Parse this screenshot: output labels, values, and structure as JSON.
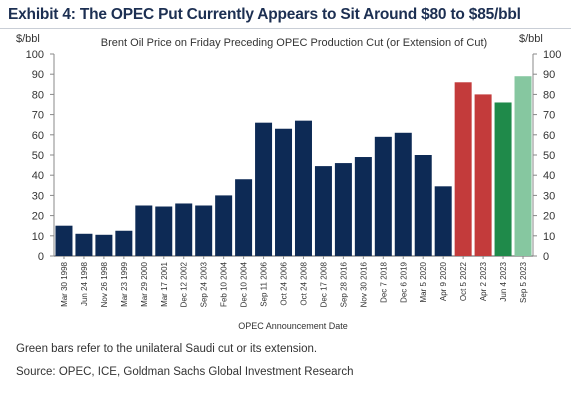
{
  "exhibit_title": "Exhibit 4: The OPEC Put Currently Appears to Sit Around $80 to $85/bbl",
  "chart_data": {
    "type": "bar",
    "title": "Brent Oil Price on Friday Preceding OPEC Production Cut (or Extension of Cut)",
    "xlabel": "OPEC Announcement Date",
    "ylabel_left": "$/bbl",
    "ylabel_right": "$/bbl",
    "ylim": [
      0,
      100
    ],
    "yticks": [
      0,
      10,
      20,
      30,
      40,
      50,
      60,
      70,
      80,
      90,
      100
    ],
    "grid": false,
    "legend": "none",
    "categories": [
      "Mar 30 1998",
      "Jun 24 1998",
      "Nov 26 1998",
      "Mar 23 1999",
      "Mar 29 2000",
      "Mar 17 2001",
      "Dec 12 2002",
      "Sep 24 2003",
      "Feb 10 2004",
      "Dec 10 2004",
      "Sep 11 2006",
      "Oct 24 2006",
      "Oct 24 2008",
      "Dec 17 2008",
      "Sep 28 2016",
      "Nov 30 2016",
      "Dec 7 2018",
      "Dec 6 2019",
      "Mar 5 2020",
      "Apr 9 2020",
      "Oct 5 2022",
      "Apr 2 2023",
      "Jun 4 2023",
      "Sep 5 2023"
    ],
    "values": [
      15,
      11,
      10.5,
      12.5,
      25,
      24.5,
      26,
      25,
      30,
      38,
      66,
      63,
      67,
      44.5,
      46,
      49,
      59,
      61,
      50,
      34.5,
      86,
      80,
      76,
      89
    ],
    "colors": [
      "#0d2a55",
      "#0d2a55",
      "#0d2a55",
      "#0d2a55",
      "#0d2a55",
      "#0d2a55",
      "#0d2a55",
      "#0d2a55",
      "#0d2a55",
      "#0d2a55",
      "#0d2a55",
      "#0d2a55",
      "#0d2a55",
      "#0d2a55",
      "#0d2a55",
      "#0d2a55",
      "#0d2a55",
      "#0d2a55",
      "#0d2a55",
      "#0d2a55",
      "#c33b3b",
      "#c33b3b",
      "#1f8a4a",
      "#86c7a0"
    ]
  },
  "footnotes": {
    "note": "Green bars refer to the unilateral Saudi cut or its extension.",
    "source": "Source: OPEC, ICE, Goldman Sachs Global Investment Research"
  }
}
